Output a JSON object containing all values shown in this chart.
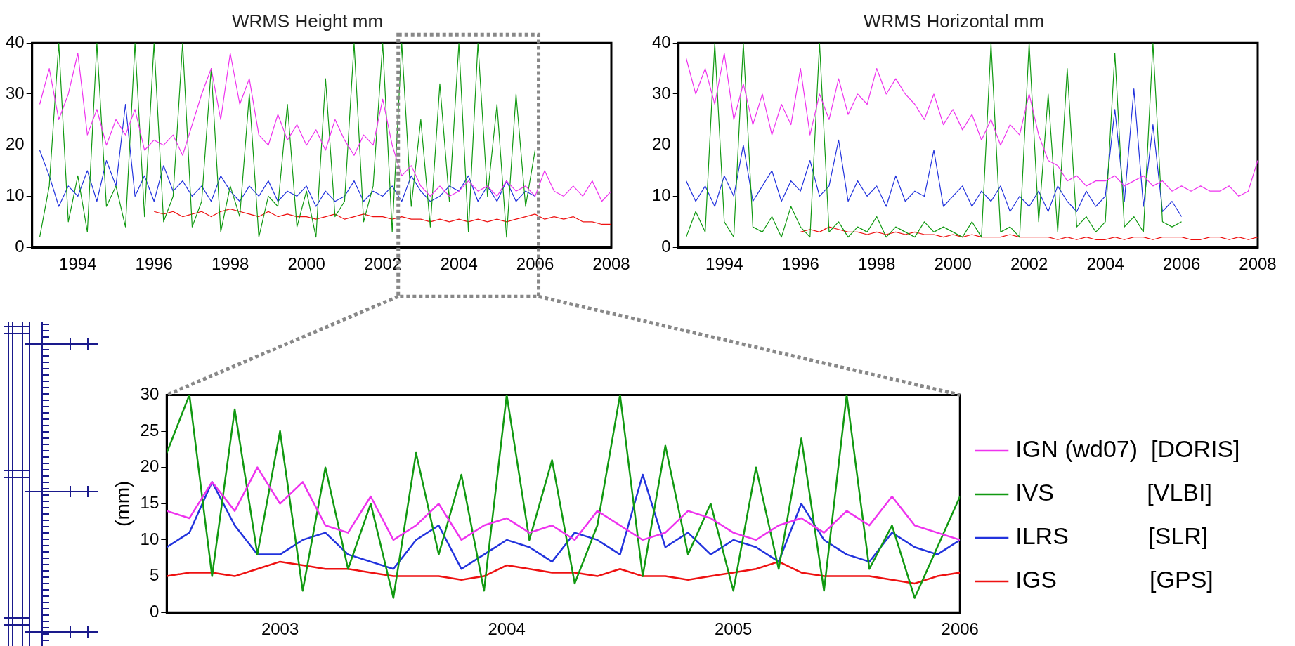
{
  "chart_data": [
    {
      "type": "line",
      "title": "WRMS Height mm",
      "marker": "none",
      "xlim": [
        1992.8,
        2008
      ],
      "xticks": [
        1994,
        1996,
        1998,
        2000,
        2002,
        2004,
        2006,
        2008
      ],
      "ylim": [
        0,
        40
      ],
      "yticks": [
        0,
        10,
        20,
        30,
        40
      ],
      "x": [
        1993,
        1993.25,
        1993.5,
        1993.75,
        1994,
        1994.25,
        1994.5,
        1994.75,
        1995,
        1995.25,
        1995.5,
        1995.75,
        1996,
        1996.25,
        1996.5,
        1996.75,
        1997,
        1997.25,
        1997.5,
        1997.75,
        1998,
        1998.25,
        1998.5,
        1998.75,
        1999,
        1999.25,
        1999.5,
        1999.75,
        2000,
        2000.25,
        2000.5,
        2000.75,
        2001,
        2001.25,
        2001.5,
        2001.75,
        2002,
        2002.25,
        2002.5,
        2002.75,
        2003,
        2003.25,
        2003.5,
        2003.75,
        2004,
        2004.25,
        2004.5,
        2004.75,
        2005,
        2005.25,
        2005.5,
        2005.75,
        2006,
        2006.25,
        2006.5,
        2006.75,
        2007,
        2007.25,
        2007.5,
        2007.75,
        2008
      ],
      "series": [
        {
          "color": "#ee33ee",
          "values": [
            28,
            35,
            25,
            30,
            38,
            22,
            27,
            20,
            25,
            22,
            27,
            19,
            21,
            20,
            22,
            18,
            24,
            30,
            35,
            25,
            38,
            28,
            33,
            22,
            20,
            26,
            21,
            24,
            20,
            23,
            19,
            25,
            21,
            18,
            22,
            20,
            29,
            20,
            14,
            16,
            12,
            10,
            12,
            10,
            11,
            13,
            11,
            12,
            10,
            13,
            11,
            12,
            10,
            15,
            11,
            10,
            12,
            10,
            13,
            9,
            11
          ]
        },
        {
          "color": "#119911",
          "values": [
            2,
            12,
            40,
            5,
            14,
            3,
            40,
            8,
            12,
            4,
            40,
            6,
            40,
            5,
            10,
            40,
            4,
            9,
            35,
            3,
            12,
            6,
            30,
            2,
            10,
            8,
            28,
            4,
            11,
            2,
            33,
            6,
            9,
            40,
            5,
            12,
            40,
            3,
            40,
            8,
            25,
            4,
            32,
            9,
            40,
            3,
            40,
            10,
            28,
            2,
            30,
            8,
            19,
            null,
            null,
            null,
            null,
            null,
            null,
            null,
            null
          ]
        },
        {
          "color": "#2233dd",
          "values": [
            19,
            14,
            8,
            12,
            10,
            15,
            9,
            17,
            12,
            28,
            10,
            14,
            9,
            16,
            11,
            13,
            10,
            12,
            9,
            14,
            11,
            9,
            12,
            10,
            13,
            9,
            11,
            10,
            12,
            8,
            11,
            9,
            10,
            13,
            9,
            11,
            10,
            12,
            9,
            14,
            11,
            9,
            10,
            12,
            11,
            14,
            9,
            12,
            9,
            13,
            9,
            11,
            10,
            null,
            null,
            null,
            null,
            null,
            null,
            null,
            null
          ]
        },
        {
          "color": "#ee1111",
          "values": [
            null,
            null,
            null,
            null,
            null,
            null,
            null,
            null,
            null,
            null,
            null,
            null,
            7,
            6.5,
            7,
            6,
            6.5,
            7,
            6,
            7,
            7.5,
            7,
            6.5,
            6,
            7,
            6,
            6.5,
            6,
            6,
            5.5,
            6,
            6.5,
            5.5,
            6,
            6.5,
            6,
            6,
            5.5,
            6,
            5.5,
            5.5,
            5,
            5.5,
            5,
            5.5,
            5,
            5.5,
            5,
            5.5,
            5,
            5.5,
            6,
            6.5,
            5.5,
            6,
            5.5,
            6,
            5,
            5,
            4.5,
            4.5
          ]
        }
      ]
    },
    {
      "type": "line",
      "title": "WRMS Horizontal mm",
      "marker": "none",
      "xlim": [
        1992.8,
        2008
      ],
      "xticks": [
        1994,
        1996,
        1998,
        2000,
        2002,
        2004,
        2006,
        2008
      ],
      "ylim": [
        0,
        40
      ],
      "yticks": [
        0,
        10,
        20,
        30,
        40
      ],
      "x": [
        1993,
        1993.25,
        1993.5,
        1993.75,
        1994,
        1994.25,
        1994.5,
        1994.75,
        1995,
        1995.25,
        1995.5,
        1995.75,
        1996,
        1996.25,
        1996.5,
        1996.75,
        1997,
        1997.25,
        1997.5,
        1997.75,
        1998,
        1998.25,
        1998.5,
        1998.75,
        1999,
        1999.25,
        1999.5,
        1999.75,
        2000,
        2000.25,
        2000.5,
        2000.75,
        2001,
        2001.25,
        2001.5,
        2001.75,
        2002,
        2002.25,
        2002.5,
        2002.75,
        2003,
        2003.25,
        2003.5,
        2003.75,
        2004,
        2004.25,
        2004.5,
        2004.75,
        2005,
        2005.25,
        2005.5,
        2005.75,
        2006,
        2006.25,
        2006.5,
        2006.75,
        2007,
        2007.25,
        2007.5,
        2007.75,
        2008
      ],
      "series": [
        {
          "color": "#ee33ee",
          "values": [
            37,
            30,
            35,
            28,
            38,
            25,
            32,
            24,
            30,
            22,
            28,
            24,
            35,
            22,
            30,
            25,
            33,
            26,
            30,
            28,
            35,
            30,
            33,
            30,
            28,
            25,
            30,
            24,
            27,
            23,
            26,
            21,
            25,
            20,
            24,
            22,
            30,
            22,
            17,
            16,
            13,
            14,
            12,
            13,
            13,
            14,
            12,
            13,
            14,
            12,
            13,
            11,
            12,
            11,
            12,
            11,
            11,
            12,
            10,
            11,
            17
          ]
        },
        {
          "color": "#119911",
          "values": [
            2,
            7,
            3,
            40,
            5,
            2,
            40,
            4,
            3,
            6,
            2,
            8,
            4,
            2,
            40,
            3,
            5,
            2,
            4,
            3,
            6,
            2,
            4,
            3,
            2,
            5,
            3,
            4,
            3,
            2,
            5,
            2,
            40,
            3,
            4,
            2,
            40,
            5,
            30,
            3,
            35,
            4,
            6,
            3,
            5,
            38,
            4,
            6,
            3,
            40,
            5,
            4,
            5,
            null,
            null,
            null,
            null,
            null,
            null,
            null,
            null
          ]
        },
        {
          "color": "#2233dd",
          "values": [
            13,
            9,
            12,
            8,
            14,
            10,
            20,
            9,
            12,
            15,
            9,
            13,
            11,
            17,
            10,
            12,
            21,
            9,
            13,
            10,
            12,
            8,
            14,
            9,
            11,
            10,
            19,
            8,
            10,
            12,
            8,
            11,
            9,
            12,
            7,
            10,
            8,
            11,
            7,
            12,
            9,
            7,
            11,
            8,
            10,
            27,
            9,
            31,
            8,
            24,
            7,
            9,
            6,
            null,
            null,
            null,
            null,
            null,
            null,
            null,
            null
          ]
        },
        {
          "color": "#ee1111",
          "values": [
            null,
            null,
            null,
            null,
            null,
            null,
            null,
            null,
            null,
            null,
            null,
            null,
            3,
            3.5,
            3,
            4,
            3.5,
            3,
            3,
            2.5,
            3,
            2.5,
            3,
            2.5,
            3,
            2.5,
            2.5,
            2,
            2.5,
            2,
            2.5,
            2,
            2,
            2,
            2.5,
            2,
            2,
            2,
            2,
            1.5,
            2,
            1.5,
            2,
            1.5,
            1.5,
            2,
            1.5,
            2,
            2,
            1.5,
            2,
            2,
            2,
            1.5,
            1.5,
            2,
            2,
            1.5,
            2,
            1.5,
            2
          ]
        }
      ]
    },
    {
      "type": "line",
      "ylabel": "(mm)",
      "marker": "none",
      "legend": "right",
      "xlim": [
        2002.5,
        2006
      ],
      "xticks": [
        2003,
        2004,
        2005,
        2006
      ],
      "ylim": [
        0,
        30
      ],
      "yticks": [
        0,
        5,
        10,
        15,
        20,
        25,
        30
      ],
      "x": [
        2002.5,
        2002.6,
        2002.7,
        2002.8,
        2002.9,
        2003,
        2003.1,
        2003.2,
        2003.3,
        2003.4,
        2003.5,
        2003.6,
        2003.7,
        2003.8,
        2003.9,
        2004,
        2004.1,
        2004.2,
        2004.3,
        2004.4,
        2004.5,
        2004.6,
        2004.7,
        2004.8,
        2004.9,
        2005,
        2005.1,
        2005.2,
        2005.3,
        2005.4,
        2005.5,
        2005.6,
        2005.7,
        2005.8,
        2005.9,
        2006
      ],
      "series": [
        {
          "name": "IGN (wd07)  [DORIS]",
          "color": "#ee33ee",
          "values": [
            14,
            13,
            18,
            14,
            20,
            15,
            18,
            12,
            11,
            16,
            10,
            12,
            15,
            10,
            12,
            13,
            11,
            12,
            10,
            14,
            12,
            10,
            11,
            14,
            13,
            11,
            10,
            12,
            13,
            11,
            14,
            12,
            16,
            12,
            11,
            10
          ]
        },
        {
          "name": "IVS              [VLBI]",
          "color": "#119911",
          "values": [
            22,
            30,
            5,
            28,
            8,
            25,
            3,
            20,
            6,
            15,
            2,
            22,
            8,
            19,
            3,
            30,
            10,
            21,
            4,
            12,
            30,
            5,
            23,
            8,
            15,
            3,
            20,
            6,
            24,
            3,
            30,
            6,
            12,
            2,
            9,
            16
          ]
        },
        {
          "name": "ILRS            [SLR]",
          "color": "#2233dd",
          "values": [
            9,
            11,
            18,
            12,
            8,
            8,
            10,
            11,
            8,
            7,
            6,
            10,
            12,
            6,
            8,
            10,
            9,
            7,
            11,
            10,
            8,
            19,
            9,
            11,
            8,
            10,
            9,
            7,
            15,
            10,
            8,
            7,
            11,
            9,
            8,
            10
          ]
        },
        {
          "name": "IGS              [GPS]",
          "color": "#ee1111",
          "values": [
            5,
            5.5,
            5.5,
            5,
            6,
            7,
            6.5,
            6,
            6,
            5.5,
            5,
            5,
            5,
            4.5,
            5,
            6.5,
            6,
            5.5,
            5.5,
            5,
            6,
            5,
            5,
            4.5,
            5,
            5.5,
            6,
            7,
            5.5,
            5,
            5,
            5,
            4.5,
            4,
            5,
            5.5
          ]
        }
      ]
    }
  ]
}
